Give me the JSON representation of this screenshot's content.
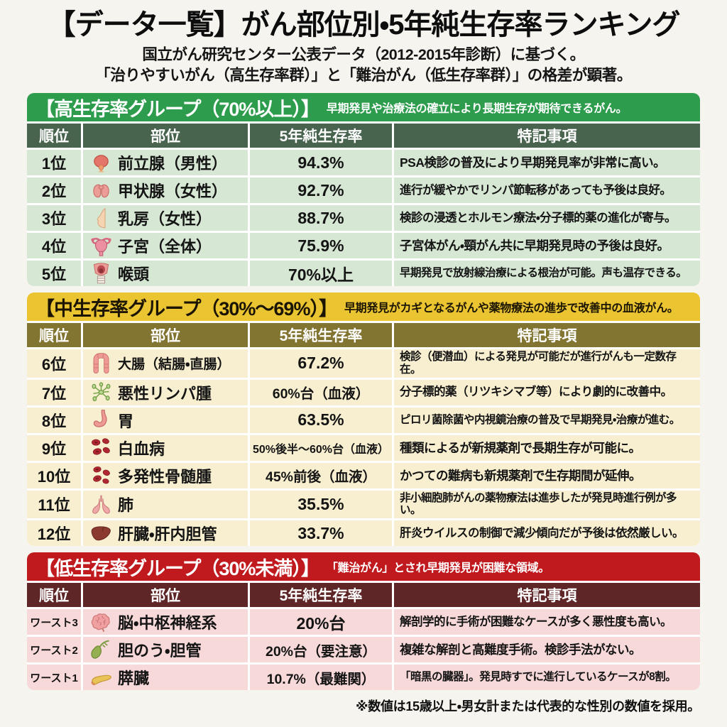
{
  "header": {
    "title": "【データ一覧】がん部位別・5年純生存率ランキング",
    "subtitle_line1": "国立がん研究センター公表データ（2012-2015年診断）に基づく。",
    "subtitle_line2": "「治りやすいがん（高生存率群）」と「難治がん（低生存率群）」の格差が顕著。"
  },
  "table_columns": [
    "順位",
    "部位",
    "5年純生存率",
    "特記事項"
  ],
  "groups": [
    {
      "id": "high",
      "title": "【高生存率グループ（70%以上）】",
      "description": "早期発見や治療法の確立により長期生存が期待できるがん。",
      "colors": {
        "band": "#2d9c4d",
        "band_text": "#ffffff",
        "header_row": "#48644f",
        "row": "#d6e7d4"
      },
      "rows": [
        {
          "rank": "1位",
          "icon": "prostate-icon",
          "site": "前立腺（男性）",
          "rate": "94.3%",
          "note": "PSA検診の普及により早期発見率が非常に高い。"
        },
        {
          "rank": "2位",
          "icon": "thyroid-icon",
          "site": "甲状腺（女性）",
          "rate": "92.7%",
          "note": "進行が緩やかでリンパ節転移があっても予後は良好。"
        },
        {
          "rank": "3位",
          "icon": "breast-icon",
          "site": "乳房（女性）",
          "rate": "88.7%",
          "note": "検診の浸透とホルモン療法・分子標的薬の進化が寄与。"
        },
        {
          "rank": "4位",
          "icon": "uterus-icon",
          "site": "子宮（全体）",
          "rate": "75.9%",
          "note": "子宮体がん・頸がん共に早期発見時の予後は良好。"
        },
        {
          "rank": "5位",
          "icon": "larynx-icon",
          "site": "喉頭",
          "rate": "70%以上",
          "note": "早期発見で放射線治療による根治が可能。声も温存できる。"
        }
      ]
    },
    {
      "id": "mid",
      "title": "【中生存率グループ（30%〜69%）】",
      "description": "早期発見がカギとなるがんや薬物療法の進歩で改善中の血液がん。",
      "colors": {
        "band": "#eac431",
        "band_text": "#1a1400",
        "header_row": "#827431",
        "row": "#f8efd0"
      },
      "rows": [
        {
          "rank": "6位",
          "icon": "colon-icon",
          "site": "大腸（結腸・直腸）",
          "rate": "67.2%",
          "note": "検診（便潜血）による発見が可能だが進行がんも一定数存在。"
        },
        {
          "rank": "7位",
          "icon": "lymph-nodes-icon",
          "site": "悪性リンパ腫",
          "rate": "60%台（血液）",
          "note": "分子標的薬（リツキシマブ等）により劇的に改善中。"
        },
        {
          "rank": "8位",
          "icon": "stomach-icon",
          "site": "胃",
          "rate": "63.5%",
          "note": "ピロリ菌除菌や内視鏡治療の普及で早期発見・治療が進む。"
        },
        {
          "rank": "9位",
          "icon": "blood-cells-icon",
          "site": "白血病",
          "rate": "50%後半〜60%台（血液）",
          "note": "種類によるが新規薬剤で長期生存が可能に。"
        },
        {
          "rank": "10位",
          "icon": "myeloma-cells-icon",
          "site": "多発性骨髄腫",
          "rate": "45%前後（血液）",
          "note": "かつての難病も新規薬剤で生存期間が延伸。"
        },
        {
          "rank": "11位",
          "icon": "lungs-icon",
          "site": "肺",
          "rate": "35.5%",
          "note": "非小細胞肺がんの薬物療法は進歩したが発見時進行例が多い。"
        },
        {
          "rank": "12位",
          "icon": "liver-icon",
          "site": "肝臓・肝内胆管",
          "rate": "33.7%",
          "note": "肝炎ウイルスの制御で減少傾向だが予後は依然厳しい。"
        }
      ]
    },
    {
      "id": "low",
      "title": "【低生存率グループ（30%未満）】",
      "description": "「難治がん」とされ早期発見が困難な領域。",
      "colors": {
        "band": "#c11a1e",
        "band_text": "#ffffff",
        "header_row": "#5f2628",
        "row": "#f8d9d9"
      },
      "rows": [
        {
          "rank": "ワースト3",
          "icon": "brain-icon",
          "site": "脳・中枢神経系",
          "rate": "20%台",
          "note": "解剖学的に手術が困難なケースが多く悪性度も高い。"
        },
        {
          "rank": "ワースト2",
          "icon": "gallbladder-icon",
          "site": "胆のう・胆管",
          "rate": "20%台（要注意）",
          "note": "複雑な解剖と高難度手術。検診手法がない。"
        },
        {
          "rank": "ワースト1",
          "icon": "pancreas-icon",
          "site": "膵臓",
          "rate": "10.7%（最難関）",
          "note": "「暗黒の臓器」。発見時すでに進行しているケースが8割。"
        }
      ]
    }
  ],
  "footnote": "※数値は15歳以上・男女計または代表的な性別の数値を採用。",
  "chart_data": {
    "type": "table",
    "title": "【データ一覧】がん部位別・5年純生存率ランキング",
    "data_source_note": "国立がん研究センター公表データ（2012-2015年診断）に基づく。",
    "columns": [
      "順位",
      "部位",
      "5年純生存率",
      "特記事項"
    ],
    "group_labels": [
      "高生存率グループ（70%以上）",
      "中生存率グループ（30%〜69%）",
      "低生存率グループ（30%未満）"
    ],
    "rows": [
      {
        "group": "高生存率グループ（70%以上）",
        "rank": "1位",
        "site": "前立腺（男性）",
        "rate_label": "94.3%",
        "rate_percent": 94.3
      },
      {
        "group": "高生存率グループ（70%以上）",
        "rank": "2位",
        "site": "甲状腺（女性）",
        "rate_label": "92.7%",
        "rate_percent": 92.7
      },
      {
        "group": "高生存率グループ（70%以上）",
        "rank": "3位",
        "site": "乳房（女性）",
        "rate_label": "88.7%",
        "rate_percent": 88.7
      },
      {
        "group": "高生存率グループ（70%以上）",
        "rank": "4位",
        "site": "子宮（全体）",
        "rate_label": "75.9%",
        "rate_percent": 75.9
      },
      {
        "group": "高生存率グループ（70%以上）",
        "rank": "5位",
        "site": "喉頭",
        "rate_label": "70%以上"
      },
      {
        "group": "中生存率グループ（30%〜69%）",
        "rank": "6位",
        "site": "大腸（結腸・直腸）",
        "rate_label": "67.2%",
        "rate_percent": 67.2
      },
      {
        "group": "中生存率グループ（30%〜69%）",
        "rank": "7位",
        "site": "悪性リンパ腫",
        "rate_label": "60%台（血液）"
      },
      {
        "group": "中生存率グループ（30%〜69%）",
        "rank": "8位",
        "site": "胃",
        "rate_label": "63.5%",
        "rate_percent": 63.5
      },
      {
        "group": "中生存率グループ（30%〜69%）",
        "rank": "9位",
        "site": "白血病",
        "rate_label": "50%後半〜60%台（血液）"
      },
      {
        "group": "中生存率グループ（30%〜69%）",
        "rank": "10位",
        "site": "多発性骨髄腫",
        "rate_label": "45%前後（血液）"
      },
      {
        "group": "中生存率グループ（30%〜69%）",
        "rank": "11位",
        "site": "肺",
        "rate_label": "35.5%",
        "rate_percent": 35.5
      },
      {
        "group": "中生存率グループ（30%〜69%）",
        "rank": "12位",
        "site": "肝臓・肝内胆管",
        "rate_label": "33.7%",
        "rate_percent": 33.7
      },
      {
        "group": "低生存率グループ（30%未満）",
        "rank": "ワースト3",
        "site": "脳・中枢神経系",
        "rate_label": "20%台"
      },
      {
        "group": "低生存率グループ（30%未満）",
        "rank": "ワースト2",
        "site": "胆のう・胆管",
        "rate_label": "20%台（要注意）"
      },
      {
        "group": "低生存率グループ（30%未満）",
        "rank": "ワースト1",
        "site": "膵臓",
        "rate_label": "10.7%（最難関）",
        "rate_percent": 10.7
      }
    ]
  }
}
